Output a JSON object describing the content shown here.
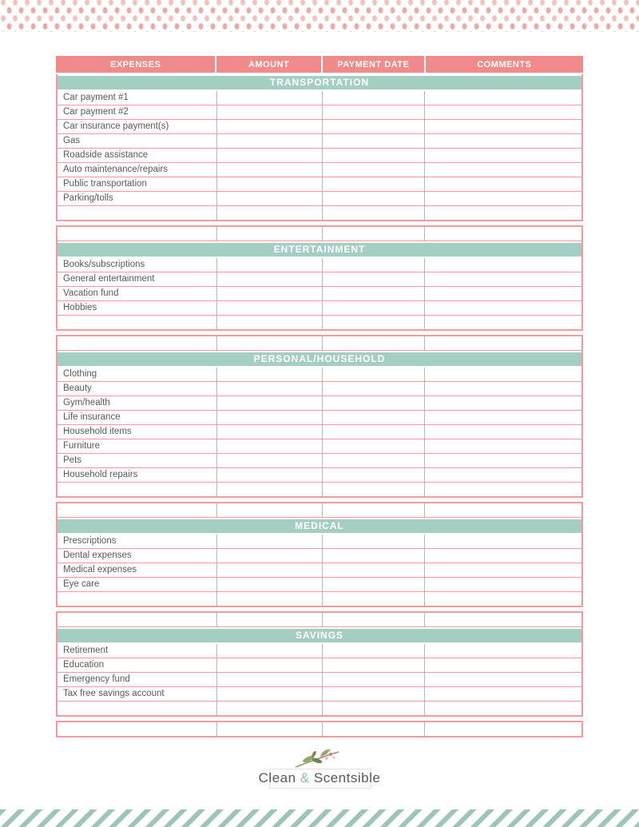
{
  "header": {
    "columns": [
      "EXPENSES",
      "AMOUNT",
      "PAYMENT DATE",
      "COMMENTS"
    ]
  },
  "sections": [
    {
      "title": "TRANSPORTATION",
      "leading_empty": 0,
      "items": [
        "Car payment #1",
        "Car payment #2",
        "Car insurance payment(s)",
        "Gas",
        "Roadside assistance",
        "Auto maintenance/repairs",
        "Public transportation",
        "Parking/tolls"
      ],
      "trailing_empty": 1
    },
    {
      "title": "ENTERTAINMENT",
      "leading_empty": 1,
      "items": [
        "Books/subscriptions",
        "General entertainment",
        "Vacation fund",
        "Hobbies"
      ],
      "trailing_empty": 1
    },
    {
      "title": "PERSONAL/HOUSEHOLD",
      "leading_empty": 1,
      "items": [
        "Clothing",
        "Beauty",
        "Gym/health",
        "Life insurance",
        "Household items",
        "Furniture",
        "Pets",
        "Household repairs"
      ],
      "trailing_empty": 1
    },
    {
      "title": "MEDICAL",
      "leading_empty": 1,
      "items": [
        "Prescriptions",
        "Dental expenses",
        "Medical expenses",
        "Eye care"
      ],
      "trailing_empty": 1
    },
    {
      "title": "SAVINGS",
      "leading_empty": 1,
      "items": [
        "Retirement",
        "Education",
        "Emergency fund",
        "Tax free savings account"
      ],
      "trailing_empty": 1
    }
  ],
  "final_empty_rows": 1,
  "footer": {
    "brand_first": "Clean",
    "brand_amp": "&",
    "brand_second": "Scentsible"
  },
  "colors": {
    "header_pink": "#F18A8A",
    "border_pink": "#F09C9A",
    "section_teal": "#A5CEC3",
    "stripe_teal": "#9CC4BA",
    "dot_pink": "#EDA9A5",
    "dot_pink_light": "#F2C1BE",
    "item_text": "#58595B",
    "brand_text": "#55575B",
    "brand_amp_teal": "#8CBDB2",
    "logo_box_border": "#F2DDD4"
  }
}
